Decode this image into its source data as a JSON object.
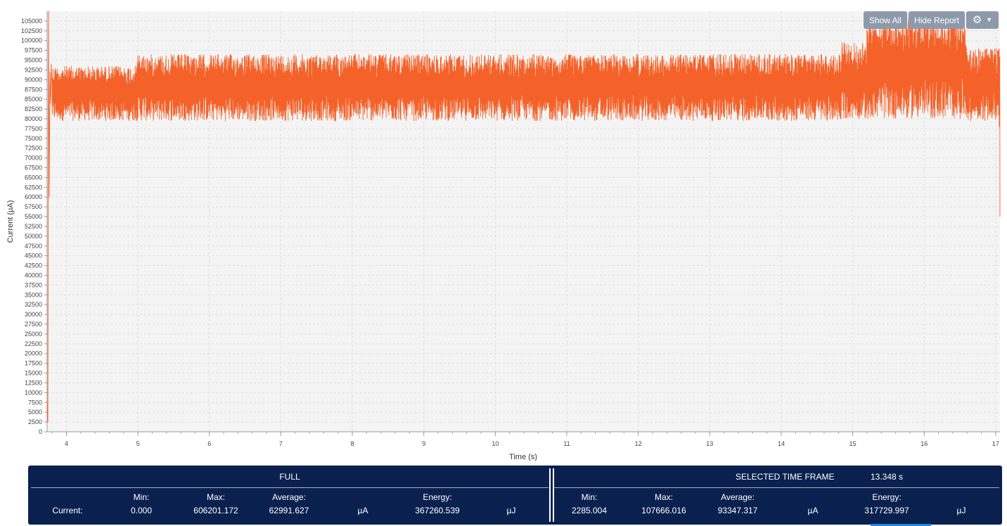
{
  "toolbar": {
    "show_all_label": "Show All",
    "hide_report_label": "Hide Report",
    "settings_icon": "gear-icon",
    "dropdown_icon": "caret-down-icon"
  },
  "chart_data": {
    "type": "line",
    "xlabel": "Time (s)",
    "ylabel": "Current (µA)",
    "xlim": [
      3.73,
      17.06
    ],
    "ylim": [
      0,
      107500
    ],
    "x_ticks": [
      4,
      5,
      6,
      7,
      8,
      9,
      10,
      11,
      12,
      13,
      14,
      15,
      16,
      17
    ],
    "y_tick_step": 2500,
    "y_tick_max": 105000,
    "grid": true,
    "line_color": "#f4622a",
    "series": [
      {
        "segments": [
          {
            "x": [
              3.73,
              3.74,
              3.75,
              3.76,
              3.77,
              3.78,
              3.79,
              3.8
            ],
            "y": [
              7000,
              2500,
              107500,
              60000,
              92000,
              84000,
              94000,
              88000
            ]
          },
          {
            "x_from": 3.8,
            "x_to": 4.98,
            "min": 79500,
            "max": 93500
          },
          {
            "x_from": 4.98,
            "x_to": 14.85,
            "min": 79500,
            "max": 96500
          },
          {
            "x_from": 14.85,
            "x_to": 15.2,
            "min": 80000,
            "max": 99500
          },
          {
            "x_from": 15.2,
            "x_to": 16.6,
            "min": 80000,
            "max": 106000
          },
          {
            "x_from": 16.6,
            "x_to": 17.06,
            "min": 79500,
            "max": 98000
          },
          {
            "x": [
              17.05,
              17.06
            ],
            "y": [
              78000,
              55000
            ]
          }
        ]
      }
    ]
  },
  "report": {
    "full": {
      "title": "FULL",
      "row_label": "Current:",
      "min_label": "Min:",
      "max_label": "Max:",
      "avg_label": "Average:",
      "energy_label": "Energy:",
      "min": "0.000",
      "max": "606201.172",
      "avg": "62991.627",
      "current_unit": "µA",
      "energy": "367260.539",
      "energy_unit": "µJ"
    },
    "selected": {
      "title": "SELECTED TIME FRAME",
      "duration": "13.348 s",
      "min_label": "Min:",
      "max_label": "Max:",
      "avg_label": "Average:",
      "energy_label": "Energy:",
      "min": "2285.004",
      "max": "107666.016",
      "avg": "93347.317",
      "current_unit": "µA",
      "energy": "317729.997",
      "energy_unit": "µJ"
    }
  }
}
